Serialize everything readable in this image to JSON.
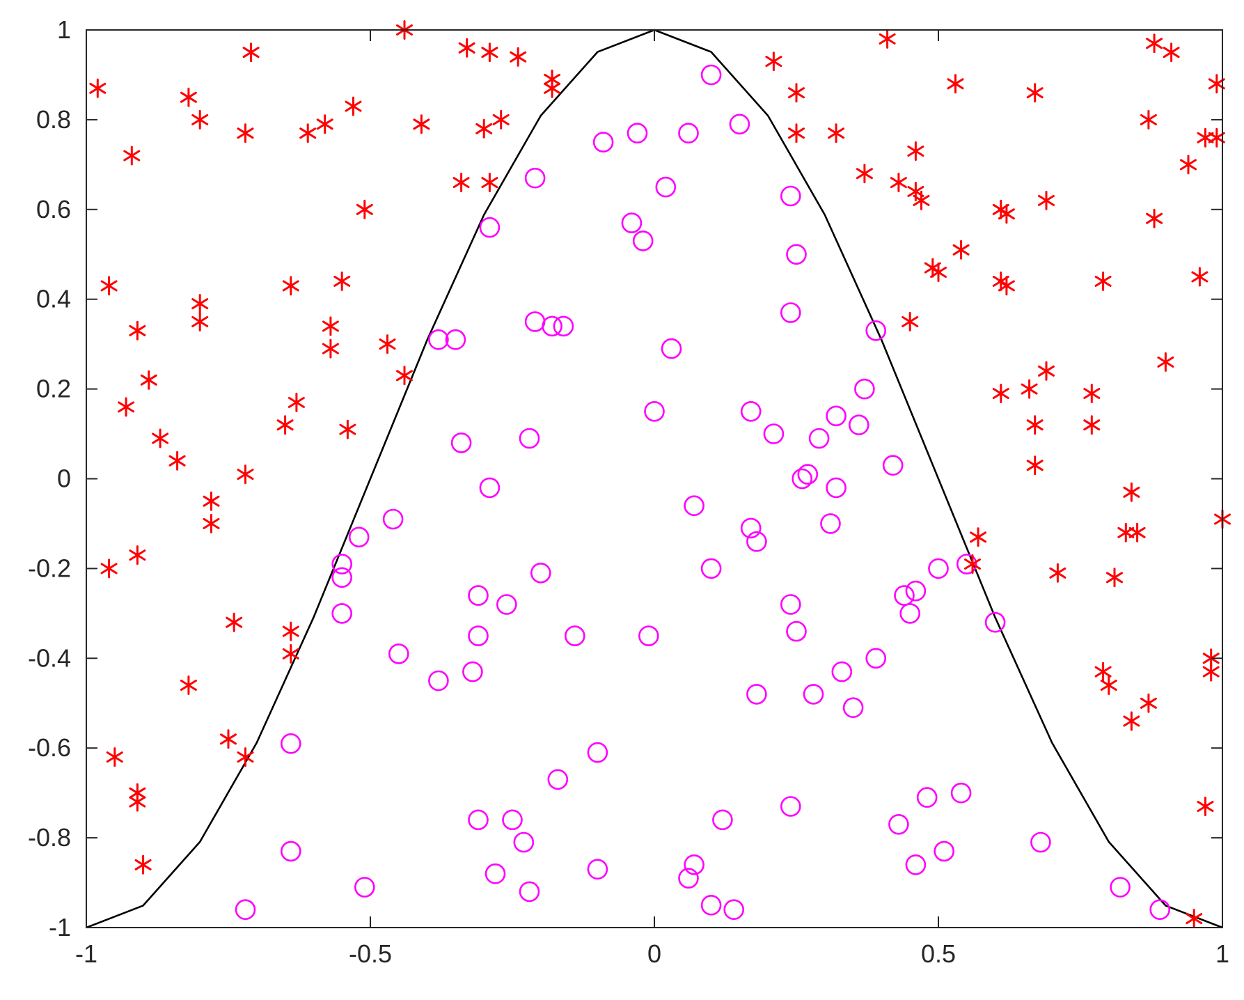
{
  "chart_data": {
    "type": "scatter",
    "title": "",
    "xlabel": "",
    "ylabel": "",
    "xlim": [
      -1,
      1
    ],
    "ylim": [
      -1,
      1
    ],
    "grid": false,
    "legend": "none",
    "x_ticks": [
      -1,
      -0.5,
      0,
      0.5,
      1
    ],
    "x_tick_labels": [
      "-1",
      "-0.5",
      "0",
      "0.5",
      "1"
    ],
    "y_ticks": [
      -1,
      -0.8,
      -0.6,
      -0.4,
      -0.2,
      0,
      0.2,
      0.4,
      0.6,
      0.8,
      1
    ],
    "y_tick_labels": [
      "-1",
      "-0.8",
      "-0.6",
      "-0.4",
      "-0.2",
      "0",
      "0.2",
      "0.4",
      "0.6",
      "0.8",
      "1"
    ],
    "series": [
      {
        "marker": "asterisk",
        "color": "#ff0000",
        "points": [
          [
            -0.98,
            0.87
          ],
          [
            -0.92,
            0.72
          ],
          [
            -0.96,
            0.43
          ],
          [
            -0.91,
            0.33
          ],
          [
            -0.93,
            0.16
          ],
          [
            -0.89,
            0.22
          ],
          [
            -0.87,
            0.09
          ],
          [
            -0.84,
            0.04
          ],
          [
            -0.96,
            -0.2
          ],
          [
            -0.91,
            -0.17
          ],
          [
            -0.95,
            -0.62
          ],
          [
            -0.91,
            -0.7
          ],
          [
            -0.91,
            -0.72
          ],
          [
            -0.9,
            -0.86
          ],
          [
            -0.82,
            0.85
          ],
          [
            -0.8,
            0.8
          ],
          [
            -0.8,
            0.39
          ],
          [
            -0.8,
            0.35
          ],
          [
            -0.78,
            -0.05
          ],
          [
            -0.78,
            -0.1
          ],
          [
            -0.74,
            -0.32
          ],
          [
            -0.82,
            -0.46
          ],
          [
            -0.75,
            -0.58
          ],
          [
            -0.72,
            -0.62
          ],
          [
            -0.71,
            0.95
          ],
          [
            -0.72,
            0.77
          ],
          [
            -0.72,
            0.01
          ],
          [
            -0.64,
            0.43
          ],
          [
            -0.63,
            0.17
          ],
          [
            -0.65,
            0.12
          ],
          [
            -0.64,
            -0.34
          ],
          [
            -0.64,
            -0.39
          ],
          [
            -0.61,
            0.77
          ],
          [
            -0.58,
            0.79
          ],
          [
            -0.57,
            0.34
          ],
          [
            -0.57,
            0.29
          ],
          [
            -0.55,
            0.44
          ],
          [
            -0.54,
            0.11
          ],
          [
            -0.53,
            0.83
          ],
          [
            -0.51,
            0.6
          ],
          [
            -0.47,
            0.3
          ],
          [
            -0.44,
            0.23
          ],
          [
            -0.44,
            1.0
          ],
          [
            -0.41,
            0.79
          ],
          [
            -0.33,
            0.96
          ],
          [
            -0.3,
            0.78
          ],
          [
            -0.34,
            0.66
          ],
          [
            -0.29,
            0.66
          ],
          [
            -0.29,
            0.95
          ],
          [
            -0.27,
            0.8
          ],
          [
            -0.24,
            0.94
          ],
          [
            -0.18,
            0.89
          ],
          [
            -0.18,
            0.87
          ],
          [
            0.21,
            0.93
          ],
          [
            0.25,
            0.86
          ],
          [
            0.25,
            0.77
          ],
          [
            0.32,
            0.77
          ],
          [
            0.41,
            0.98
          ],
          [
            0.37,
            0.68
          ],
          [
            0.43,
            0.66
          ],
          [
            0.46,
            0.73
          ],
          [
            0.46,
            0.64
          ],
          [
            0.47,
            0.62
          ],
          [
            0.45,
            0.35
          ],
          [
            0.49,
            0.47
          ],
          [
            0.5,
            0.46
          ],
          [
            0.53,
            0.88
          ],
          [
            0.54,
            0.51
          ],
          [
            0.57,
            -0.13
          ],
          [
            0.56,
            -0.19
          ],
          [
            0.61,
            0.6
          ],
          [
            0.61,
            0.44
          ],
          [
            0.62,
            0.43
          ],
          [
            0.62,
            0.59
          ],
          [
            0.61,
            0.19
          ],
          [
            0.67,
            0.86
          ],
          [
            0.69,
            0.62
          ],
          [
            0.66,
            0.2
          ],
          [
            0.69,
            0.24
          ],
          [
            0.67,
            0.12
          ],
          [
            0.67,
            0.03
          ],
          [
            0.71,
            -0.21
          ],
          [
            0.77,
            0.19
          ],
          [
            0.77,
            0.12
          ],
          [
            0.79,
            0.44
          ],
          [
            0.79,
            -0.43
          ],
          [
            0.8,
            -0.46
          ],
          [
            0.81,
            -0.22
          ],
          [
            0.84,
            -0.03
          ],
          [
            0.83,
            -0.12
          ],
          [
            0.85,
            -0.12
          ],
          [
            0.87,
            -0.5
          ],
          [
            0.84,
            -0.54
          ],
          [
            0.87,
            0.8
          ],
          [
            0.88,
            0.97
          ],
          [
            0.88,
            0.58
          ],
          [
            0.91,
            0.95
          ],
          [
            0.9,
            0.26
          ],
          [
            0.94,
            0.7
          ],
          [
            0.96,
            0.45
          ],
          [
            0.97,
            0.76
          ],
          [
            0.99,
            0.76
          ],
          [
            0.99,
            0.88
          ],
          [
            1.0,
            -0.09
          ],
          [
            0.98,
            -0.4
          ],
          [
            0.98,
            -0.43
          ],
          [
            0.97,
            -0.73
          ],
          [
            0.95,
            -0.98
          ]
        ]
      },
      {
        "marker": "circle",
        "color": "#ff00ff",
        "points": [
          [
            0.1,
            0.9
          ],
          [
            0.15,
            0.79
          ],
          [
            -0.09,
            0.75
          ],
          [
            -0.03,
            0.77
          ],
          [
            0.06,
            0.77
          ],
          [
            -0.21,
            0.67
          ],
          [
            0.02,
            0.65
          ],
          [
            0.24,
            0.63
          ],
          [
            -0.29,
            0.56
          ],
          [
            -0.04,
            0.57
          ],
          [
            -0.02,
            0.53
          ],
          [
            0.25,
            0.5
          ],
          [
            0.24,
            0.37
          ],
          [
            -0.21,
            0.35
          ],
          [
            -0.18,
            0.34
          ],
          [
            -0.16,
            0.34
          ],
          [
            0.39,
            0.33
          ],
          [
            -0.38,
            0.31
          ],
          [
            -0.35,
            0.31
          ],
          [
            0.03,
            0.29
          ],
          [
            0.37,
            0.2
          ],
          [
            0.17,
            0.15
          ],
          [
            0.0,
            0.15
          ],
          [
            0.32,
            0.14
          ],
          [
            0.36,
            0.12
          ],
          [
            0.21,
            0.1
          ],
          [
            0.29,
            0.09
          ],
          [
            -0.22,
            0.09
          ],
          [
            -0.34,
            0.08
          ],
          [
            0.42,
            0.03
          ],
          [
            0.27,
            0.01
          ],
          [
            0.26,
            0.0
          ],
          [
            -0.29,
            -0.02
          ],
          [
            0.32,
            -0.02
          ],
          [
            0.07,
            -0.06
          ],
          [
            -0.46,
            -0.09
          ],
          [
            0.31,
            -0.1
          ],
          [
            0.17,
            -0.11
          ],
          [
            -0.52,
            -0.13
          ],
          [
            0.18,
            -0.14
          ],
          [
            -0.55,
            -0.19
          ],
          [
            -0.55,
            -0.22
          ],
          [
            0.1,
            -0.2
          ],
          [
            -0.2,
            -0.21
          ],
          [
            0.5,
            -0.2
          ],
          [
            0.55,
            -0.19
          ],
          [
            -0.31,
            -0.26
          ],
          [
            0.44,
            -0.26
          ],
          [
            0.46,
            -0.25
          ],
          [
            -0.26,
            -0.28
          ],
          [
            0.24,
            -0.28
          ],
          [
            -0.55,
            -0.3
          ],
          [
            0.45,
            -0.3
          ],
          [
            0.6,
            -0.32
          ],
          [
            0.25,
            -0.34
          ],
          [
            -0.31,
            -0.35
          ],
          [
            -0.14,
            -0.35
          ],
          [
            -0.01,
            -0.35
          ],
          [
            -0.45,
            -0.39
          ],
          [
            0.39,
            -0.4
          ],
          [
            0.33,
            -0.43
          ],
          [
            -0.32,
            -0.43
          ],
          [
            -0.38,
            -0.45
          ],
          [
            0.18,
            -0.48
          ],
          [
            0.28,
            -0.48
          ],
          [
            0.35,
            -0.51
          ],
          [
            -0.64,
            -0.59
          ],
          [
            -0.1,
            -0.61
          ],
          [
            -0.17,
            -0.67
          ],
          [
            0.48,
            -0.71
          ],
          [
            0.54,
            -0.7
          ],
          [
            0.24,
            -0.73
          ],
          [
            -0.31,
            -0.76
          ],
          [
            -0.25,
            -0.76
          ],
          [
            0.12,
            -0.76
          ],
          [
            0.43,
            -0.77
          ],
          [
            -0.23,
            -0.81
          ],
          [
            0.68,
            -0.81
          ],
          [
            -0.64,
            -0.83
          ],
          [
            0.51,
            -0.83
          ],
          [
            0.46,
            -0.86
          ],
          [
            0.07,
            -0.86
          ],
          [
            -0.28,
            -0.88
          ],
          [
            -0.1,
            -0.87
          ],
          [
            0.06,
            -0.89
          ],
          [
            -0.51,
            -0.91
          ],
          [
            -0.22,
            -0.92
          ],
          [
            0.82,
            -0.91
          ],
          [
            0.1,
            -0.95
          ],
          [
            0.14,
            -0.96
          ],
          [
            -0.72,
            -0.96
          ],
          [
            0.89,
            -0.96
          ]
        ]
      },
      {
        "marker": "line",
        "color": "#000000",
        "x": [
          -1,
          -0.9,
          -0.8,
          -0.7,
          -0.6,
          -0.5,
          -0.4,
          -0.3,
          -0.2,
          -0.1,
          0,
          0.1,
          0.2,
          0.3,
          0.4,
          0.5,
          0.6,
          0.7,
          0.8,
          0.9,
          1
        ],
        "y": [
          -1,
          -0.951,
          -0.809,
          -0.588,
          -0.309,
          0,
          0.309,
          0.588,
          0.809,
          0.951,
          1,
          0.951,
          0.809,
          0.588,
          0.309,
          0,
          -0.309,
          -0.588,
          -0.809,
          -0.951,
          -1
        ]
      }
    ]
  }
}
